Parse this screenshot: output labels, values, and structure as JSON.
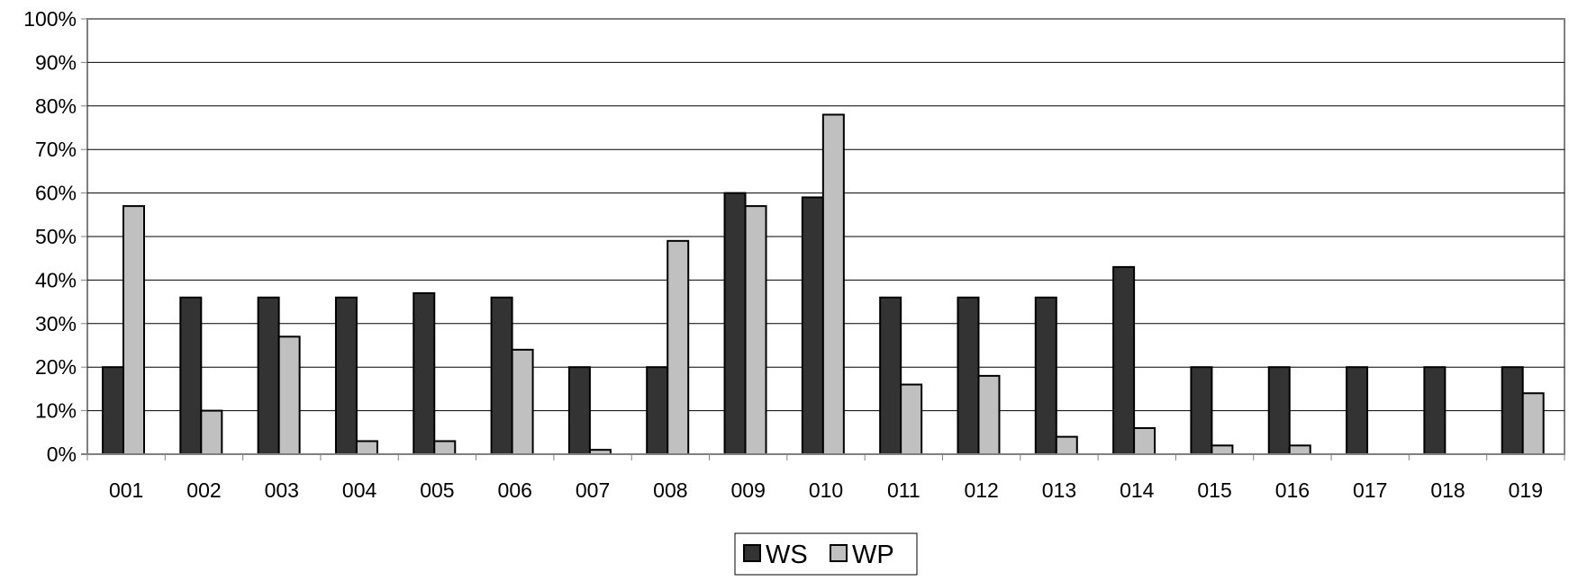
{
  "chart_data": {
    "type": "bar",
    "categories": [
      "001",
      "002",
      "003",
      "004",
      "005",
      "006",
      "007",
      "008",
      "009",
      "010",
      "011",
      "012",
      "013",
      "014",
      "015",
      "016",
      "017",
      "018",
      "019"
    ],
    "series": [
      {
        "name": "WS",
        "color": "#333333",
        "values": [
          20,
          36,
          36,
          36,
          37,
          36,
          20,
          20,
          60,
          59,
          36,
          36,
          36,
          43,
          20,
          20,
          20,
          20,
          20
        ]
      },
      {
        "name": "WP",
        "color": "#c0c0c0",
        "values": [
          57,
          10,
          27,
          3,
          3,
          24,
          1,
          49,
          57,
          78,
          16,
          18,
          4,
          6,
          2,
          2,
          0,
          0,
          14
        ]
      }
    ],
    "y_ticks": [
      "0%",
      "10%",
      "20%",
      "30%",
      "40%",
      "50%",
      "60%",
      "70%",
      "80%",
      "90%",
      "100%"
    ],
    "ylim": [
      0,
      100
    ],
    "grid": true,
    "legend_position": "bottom-center"
  }
}
